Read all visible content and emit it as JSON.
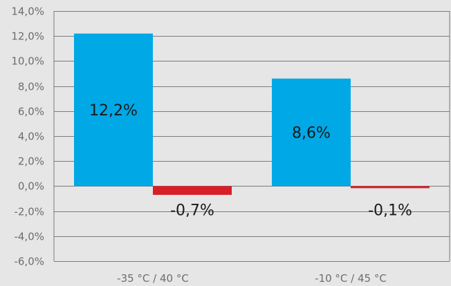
{
  "chart_data": {
    "type": "bar",
    "categories": [
      "-35 °C / 40 °C",
      "-10 °C / 45 °C"
    ],
    "series": [
      {
        "values": [
          12.2,
          8.6
        ],
        "color": "#00a8e6"
      },
      {
        "values": [
          -0.7,
          -0.1
        ],
        "color": "#d81e27"
      }
    ],
    "data_labels": [
      [
        "12,2%",
        "8,6%"
      ],
      [
        "-0,7%",
        "-0,1%"
      ]
    ],
    "y_ticks": [
      14,
      12,
      10,
      8,
      6,
      4,
      2,
      0,
      -2,
      -4,
      -6
    ],
    "y_tick_labels": [
      "14,0%",
      "12,0%",
      "10,0%",
      "8,0%",
      "6,0%",
      "4,0%",
      "2,0%",
      "0,0%",
      "-2,0%",
      "-4,0%",
      "-6,0%"
    ],
    "ylim": [
      -6,
      14
    ],
    "grid": true,
    "legend": "none",
    "title": "",
    "xlabel": "",
    "ylabel": ""
  }
}
